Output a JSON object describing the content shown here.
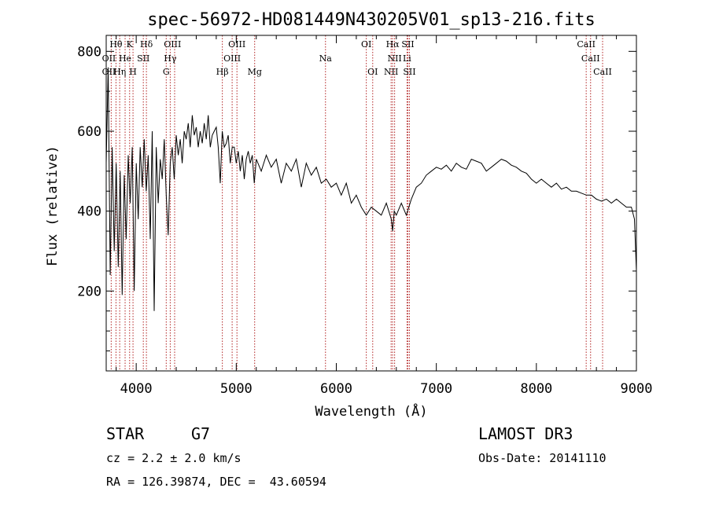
{
  "chart_data": {
    "type": "line",
    "title": "spec-56972-HD081449N430205V01_sp13-216.fits",
    "xlabel": "Wavelength (Å)",
    "ylabel": "Flux (relative)",
    "xlim": [
      3700,
      9000
    ],
    "ylim": [
      0,
      840
    ],
    "xticks": [
      4000,
      5000,
      6000,
      7000,
      8000,
      9000
    ],
    "yticks": [
      200,
      400,
      600,
      800
    ],
    "series": [
      {
        "name": "flux",
        "x": [
          3700,
          3720,
          3740,
          3760,
          3780,
          3800,
          3820,
          3840,
          3860,
          3880,
          3900,
          3920,
          3940,
          3960,
          3980,
          4000,
          4020,
          4040,
          4060,
          4080,
          4100,
          4120,
          4140,
          4160,
          4180,
          4200,
          4220,
          4240,
          4260,
          4280,
          4300,
          4320,
          4340,
          4360,
          4380,
          4400,
          4420,
          4440,
          4460,
          4480,
          4500,
          4520,
          4540,
          4560,
          4580,
          4600,
          4620,
          4640,
          4660,
          4680,
          4700,
          4720,
          4740,
          4760,
          4780,
          4800,
          4820,
          4840,
          4860,
          4880,
          4900,
          4920,
          4940,
          4960,
          4980,
          5000,
          5020,
          5040,
          5060,
          5080,
          5100,
          5120,
          5140,
          5160,
          5180,
          5200,
          5250,
          5300,
          5350,
          5400,
          5450,
          5500,
          5550,
          5600,
          5650,
          5700,
          5750,
          5800,
          5850,
          5900,
          5950,
          6000,
          6050,
          6100,
          6150,
          6200,
          6250,
          6300,
          6350,
          6400,
          6450,
          6500,
          6550,
          6563,
          6580,
          6600,
          6650,
          6700,
          6750,
          6800,
          6850,
          6900,
          6950,
          7000,
          7050,
          7100,
          7150,
          7200,
          7250,
          7300,
          7350,
          7400,
          7450,
          7500,
          7550,
          7600,
          7650,
          7700,
          7750,
          7800,
          7850,
          7900,
          7950,
          8000,
          8050,
          8100,
          8150,
          8200,
          8250,
          8300,
          8350,
          8400,
          8450,
          8500,
          8550,
          8600,
          8650,
          8700,
          8750,
          8800,
          8850,
          8900,
          8950,
          8980,
          9000
        ],
        "y": [
          520,
          760,
          240,
          560,
          300,
          520,
          260,
          500,
          190,
          490,
          330,
          540,
          420,
          560,
          200,
          520,
          380,
          560,
          460,
          580,
          450,
          540,
          330,
          600,
          150,
          560,
          420,
          530,
          480,
          580,
          440,
          340,
          520,
          560,
          480,
          590,
          540,
          580,
          520,
          600,
          580,
          620,
          560,
          640,
          590,
          610,
          560,
          600,
          570,
          620,
          580,
          640,
          560,
          590,
          600,
          610,
          560,
          470,
          600,
          560,
          570,
          590,
          520,
          560,
          560,
          520,
          550,
          500,
          540,
          480,
          530,
          550,
          520,
          540,
          470,
          530,
          500,
          540,
          510,
          530,
          470,
          520,
          500,
          530,
          460,
          520,
          490,
          510,
          470,
          480,
          460,
          470,
          440,
          470,
          420,
          440,
          410,
          390,
          410,
          400,
          390,
          420,
          380,
          350,
          400,
          390,
          420,
          390,
          430,
          460,
          470,
          490,
          500,
          510,
          505,
          515,
          500,
          520,
          510,
          505,
          530,
          525,
          520,
          500,
          510,
          520,
          530,
          525,
          515,
          510,
          500,
          495,
          480,
          470,
          480,
          470,
          460,
          470,
          455,
          460,
          450,
          450,
          445,
          440,
          440,
          430,
          425,
          430,
          420,
          430,
          420,
          410,
          410,
          380,
          250
        ],
        "color": "#000000"
      }
    ],
    "reference_lines": {
      "color": "#b22222",
      "wavelengths": [
        3750,
        3798,
        3835,
        3889,
        3934,
        3968,
        4071,
        4102,
        4300,
        4340,
        4384,
        4861,
        4959,
        5007,
        5184,
        5892,
        6300,
        6364,
        6548,
        6563,
        6583,
        6707,
        6716,
        6731,
        8498,
        8542,
        8662
      ]
    },
    "line_labels": [
      {
        "text": "Hθ",
        "wl": 3798,
        "row": 1
      },
      {
        "text": "K",
        "wl": 3934,
        "row": 1
      },
      {
        "text": "Hδ",
        "wl": 4102,
        "row": 1
      },
      {
        "text": "OIII",
        "wl": 4363,
        "row": 1
      },
      {
        "text": "OIII",
        "wl": 5007,
        "row": 1
      },
      {
        "text": "OI",
        "wl": 6300,
        "row": 1
      },
      {
        "text": "Hα",
        "wl": 6563,
        "row": 1
      },
      {
        "text": "SII",
        "wl": 6716,
        "row": 1
      },
      {
        "text": "CaII",
        "wl": 8498,
        "row": 1
      },
      {
        "text": "OII",
        "wl": 3727,
        "row": 2
      },
      {
        "text": "He",
        "wl": 3889,
        "row": 2
      },
      {
        "text": "SII",
        "wl": 4071,
        "row": 2
      },
      {
        "text": "Hγ",
        "wl": 4340,
        "row": 2
      },
      {
        "text": "OIII",
        "wl": 4959,
        "row": 2
      },
      {
        "text": "Na",
        "wl": 5892,
        "row": 2
      },
      {
        "text": "NII",
        "wl": 6583,
        "row": 2
      },
      {
        "text": "Li",
        "wl": 6707,
        "row": 2
      },
      {
        "text": "CaII",
        "wl": 8542,
        "row": 2
      },
      {
        "text": "OII",
        "wl": 3727,
        "row": 3
      },
      {
        "text": "Hη",
        "wl": 3835,
        "row": 3
      },
      {
        "text": "H",
        "wl": 3968,
        "row": 3
      },
      {
        "text": "G",
        "wl": 4300,
        "row": 3
      },
      {
        "text": "Hβ",
        "wl": 4861,
        "row": 3
      },
      {
        "text": "Mg",
        "wl": 5184,
        "row": 3
      },
      {
        "text": "OI",
        "wl": 6364,
        "row": 3
      },
      {
        "text": "NII",
        "wl": 6548,
        "row": 3
      },
      {
        "text": "SII",
        "wl": 6731,
        "row": 3
      },
      {
        "text": "CaII",
        "wl": 8662,
        "row": 3
      }
    ]
  },
  "info": {
    "object_type": "STAR",
    "subclass": "G7",
    "survey": "LAMOST DR3",
    "cz": "cz = 2.2 ± 2.0 km/s",
    "obs_date": "Obs-Date: 20141110",
    "coords": "RA = 126.39874, DEC =  43.60594"
  }
}
